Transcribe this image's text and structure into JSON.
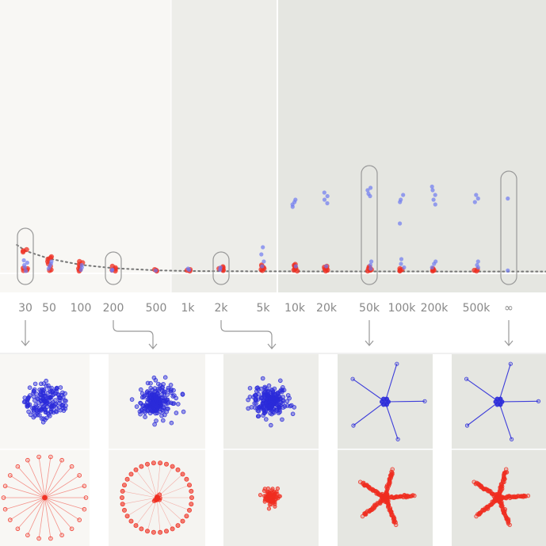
{
  "chart_data": {
    "type": "scatter",
    "x_scale": "log",
    "x_ticks": [
      "30",
      "50",
      "100",
      "200",
      "500",
      "1k",
      "2k",
      "5k",
      "10k",
      "20k",
      "50k",
      "100k",
      "200k",
      "500k",
      "∞"
    ],
    "x_tick_values": [
      30,
      50,
      100,
      200,
      500,
      1000,
      2000,
      5000,
      10000,
      20000,
      50000,
      100000,
      200000,
      500000,
      null
    ],
    "regions": [
      {
        "from": "30",
        "to": "1k",
        "color": "#f8f7f4"
      },
      {
        "from": "1k",
        "to": "5k",
        "color": "#edede9"
      },
      {
        "from": "5k",
        "to": "∞",
        "color": "#e5e6e1"
      }
    ],
    "series": [
      {
        "color": "#ef2d20",
        "values": [
          {
            "x": "30",
            "y": [
              0.12,
              0.14,
              0.2,
              0.22,
              0.9,
              0.95,
              1.0
            ]
          },
          {
            "x": "50",
            "y": [
              0.12,
              0.15,
              0.3,
              0.4,
              0.5,
              0.6,
              0.65,
              0.7
            ]
          },
          {
            "x": "100",
            "y": [
              0.1,
              0.15,
              0.2,
              0.3,
              0.38,
              0.45,
              0.5
            ]
          },
          {
            "x": "200",
            "y": [
              0.1,
              0.14,
              0.18,
              0.24,
              0.3
            ]
          },
          {
            "x": "500",
            "y": [
              0.1,
              0.13,
              0.16
            ]
          },
          {
            "x": "1k",
            "y": [
              0.1,
              0.13,
              0.16
            ]
          },
          {
            "x": "2k",
            "y": [
              0.12,
              0.16,
              0.2,
              0.24,
              0.28
            ]
          },
          {
            "x": "5k",
            "y": [
              0.12,
              0.16,
              0.2,
              0.25,
              0.3,
              0.35
            ]
          },
          {
            "x": "10k",
            "y": [
              0.1,
              0.14,
              0.18,
              0.22,
              0.26,
              0.3,
              0.34,
              0.38
            ]
          },
          {
            "x": "20k",
            "y": [
              0.1,
              0.14,
              0.18,
              0.22,
              0.26,
              0.3
            ]
          },
          {
            "x": "50k",
            "y": [
              0.1,
              0.13,
              0.16,
              0.2,
              0.24,
              0.28
            ]
          },
          {
            "x": "100k",
            "y": [
              0.1,
              0.13,
              0.16,
              0.2
            ]
          },
          {
            "x": "200k",
            "y": [
              0.1,
              0.13,
              0.16,
              0.2
            ]
          },
          {
            "x": "500k",
            "y": [
              0.1,
              0.13,
              0.16
            ]
          }
        ]
      },
      {
        "color": "#6f7bf1",
        "values": [
          {
            "x": "30",
            "y": [
              0.1,
              0.25,
              0.35,
              0.45,
              0.55
            ]
          },
          {
            "x": "50",
            "y": [
              0.2,
              0.3,
              0.4,
              0.5
            ]
          },
          {
            "x": "100",
            "y": [
              0.15,
              0.25,
              0.35
            ]
          },
          {
            "x": "200",
            "y": [
              0.12,
              0.16
            ]
          },
          {
            "x": "500",
            "y": [
              0.12
            ]
          },
          {
            "x": "1k",
            "y": [
              0.15,
              0.2
            ]
          },
          {
            "x": "2k",
            "y": [
              0.15,
              0.25
            ]
          },
          {
            "x": "5k",
            "y": [
              0.3,
              0.5,
              0.8,
              1.1
            ]
          },
          {
            "x": "10k",
            "y": [
              0.3,
              2.8,
              2.9,
              3.0,
              3.1
            ]
          },
          {
            "x": "20k",
            "y": [
              0.3,
              2.95,
              3.1,
              3.25,
              3.4
            ]
          },
          {
            "x": "50k",
            "y": [
              0.2,
              0.35,
              0.5,
              3.25,
              3.35,
              3.5,
              3.6
            ]
          },
          {
            "x": "100k",
            "y": [
              0.25,
              0.4,
              0.6,
              2.1,
              3.0,
              3.1,
              3.3
            ]
          },
          {
            "x": "200k",
            "y": [
              0.25,
              0.4,
              0.5,
              2.9,
              3.1,
              3.3,
              3.5,
              3.65
            ]
          },
          {
            "x": "500k",
            "y": [
              0.25,
              0.35,
              0.5,
              3.0,
              3.15,
              3.3
            ]
          },
          {
            "x": "∞",
            "y": [
              0.12,
              3.15
            ]
          }
        ]
      }
    ],
    "trend_line": {
      "style": "dotted",
      "color": "#777777",
      "points": [
        {
          "x": 25,
          "y": 1.2
        },
        {
          "x": 30,
          "y": 0.95
        },
        {
          "x": 50,
          "y": 0.62
        },
        {
          "x": 100,
          "y": 0.36
        },
        {
          "x": 200,
          "y": 0.22
        },
        {
          "x": 500,
          "y": 0.13
        },
        {
          "x": 1000,
          "y": 0.1
        },
        {
          "x": 5000,
          "y": 0.085
        },
        {
          "x": 500000,
          "y": 0.08
        }
      ]
    },
    "highlighted_ticks": [
      "30",
      "200",
      "2k",
      "50k",
      "∞"
    ],
    "panels": [
      {
        "source_tick": "30",
        "background": "#f8f7f4",
        "blue": "ball",
        "red": "wheel"
      },
      {
        "source_tick": "200",
        "background": "#f5f4f1",
        "blue": "dense-ball",
        "red": "ring-hub"
      },
      {
        "source_tick": "2k",
        "background": "#edede9",
        "blue": "dense-ball",
        "red": "tight-ball"
      },
      {
        "source_tick": "50k",
        "background": "#e5e6e1",
        "blue": "star-thin",
        "red": "star-thick"
      },
      {
        "source_tick": "∞",
        "background": "#e5e6e1",
        "blue": "star-thin",
        "red": "star-thick"
      }
    ],
    "colors": {
      "red": "#ef2d20",
      "blue": "#2b2bd9",
      "blue_light": "#6f7bf1",
      "axis": "#888888",
      "outline": "#999999"
    }
  }
}
